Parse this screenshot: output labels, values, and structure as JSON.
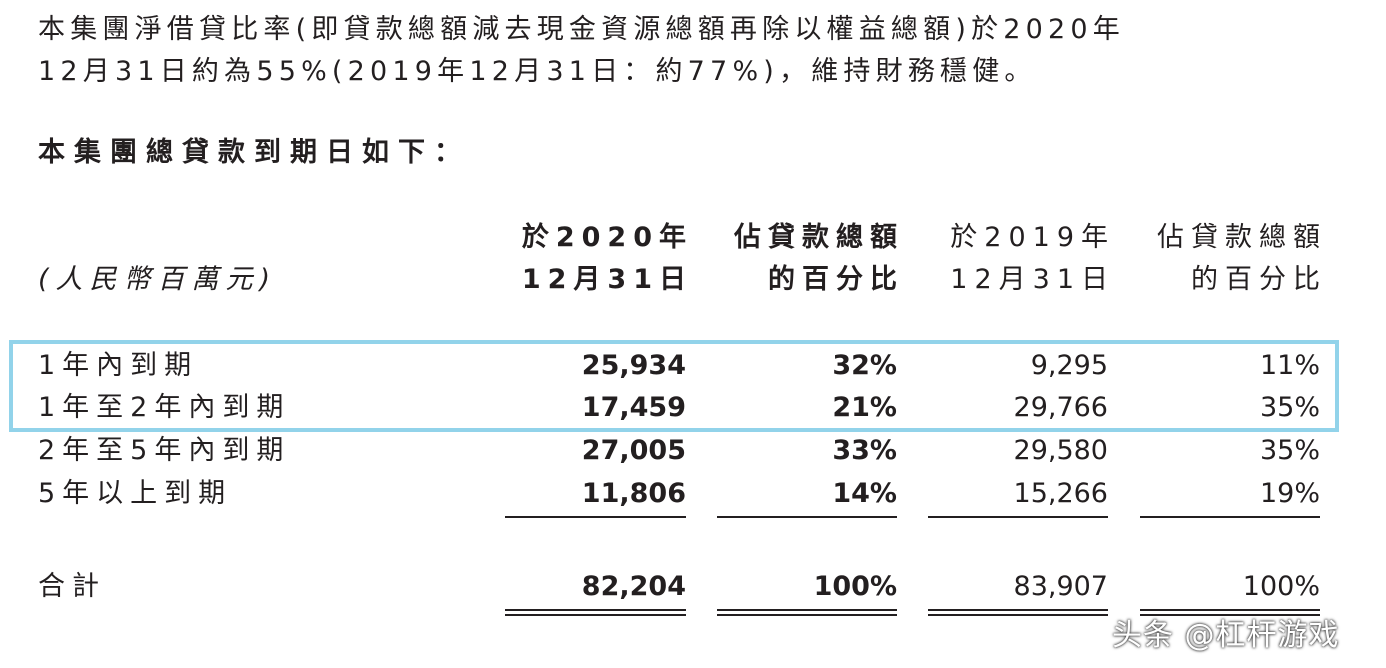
{
  "paragraph": {
    "lines": [
      "本集團淨借貸比率(即貸款總額減去現金資源總額再除以權益總額)於2020年",
      "12月31日約為55%(2019年12月31日：約77%)，維持財務穩健。"
    ]
  },
  "heading": "本集團總貸款到期日如下：",
  "table": {
    "unit": "(人民幣百萬元)",
    "columns": [
      [
        "於2020年",
        "12月31日"
      ],
      [
        "佔貸款總額",
        "的百分比"
      ],
      [
        "於2019年",
        "12月31日"
      ],
      [
        "佔貸款總額",
        "的百分比"
      ]
    ],
    "rows": [
      [
        "1年內到期",
        "25,934",
        "32%",
        "9,295",
        "11%"
      ],
      [
        "1年至2年內到期",
        "17,459",
        "21%",
        "29,766",
        "35%"
      ],
      [
        "2年至5年內到期",
        "27,005",
        "33%",
        "29,580",
        "35%"
      ],
      [
        "5年以上到期",
        "11,806",
        "14%",
        "15,266",
        "19%"
      ]
    ],
    "total": [
      "合計",
      "82,204",
      "100%",
      "83,907",
      "100%"
    ]
  },
  "watermark": "头条 @杠杆游戏"
}
